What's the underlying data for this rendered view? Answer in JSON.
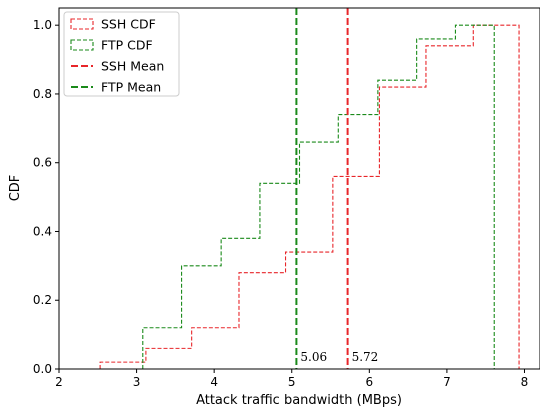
{
  "chart_data": {
    "type": "line",
    "title": "",
    "xlabel": "Attack traffic bandwidth (MBps)",
    "ylabel": "CDF",
    "xlim": [
      2,
      8.2
    ],
    "ylim": [
      0,
      1.05
    ],
    "xticks": [
      2,
      3,
      4,
      5,
      6,
      7,
      8
    ],
    "yticks": [
      0.0,
      0.2,
      0.4,
      0.6,
      0.8,
      1.0
    ],
    "ytick_labels": [
      "0.0",
      "0.2",
      "0.4",
      "0.6",
      "0.8",
      "1.0"
    ],
    "legend_position": "top-left",
    "grid": false,
    "series": [
      {
        "name": "SSH CDF",
        "style": "histogram-step-dashed",
        "color": "#e8262a",
        "bin_edges": [
          2.53,
          3.12,
          3.71,
          4.32,
          4.92,
          5.53,
          6.13,
          6.73,
          7.34,
          7.93
        ],
        "cdf": [
          0.02,
          0.06,
          0.12,
          0.28,
          0.34,
          0.56,
          0.82,
          0.94,
          1.0
        ]
      },
      {
        "name": "FTP CDF",
        "style": "histogram-step-dashed",
        "color": "#1a8a1a",
        "bin_edges": [
          3.08,
          3.58,
          4.09,
          4.59,
          5.1,
          5.6,
          6.11,
          6.61,
          7.11,
          7.61
        ],
        "cdf": [
          0.12,
          0.3,
          0.38,
          0.54,
          0.66,
          0.74,
          0.84,
          0.96,
          1.0
        ]
      },
      {
        "name": "SSH Mean",
        "style": "vline-dashed",
        "color": "#e8262a",
        "x": 5.72,
        "label": "5.72"
      },
      {
        "name": "FTP Mean",
        "style": "vline-dashed",
        "color": "#1a8a1a",
        "x": 5.06,
        "label": "5.06"
      }
    ]
  }
}
